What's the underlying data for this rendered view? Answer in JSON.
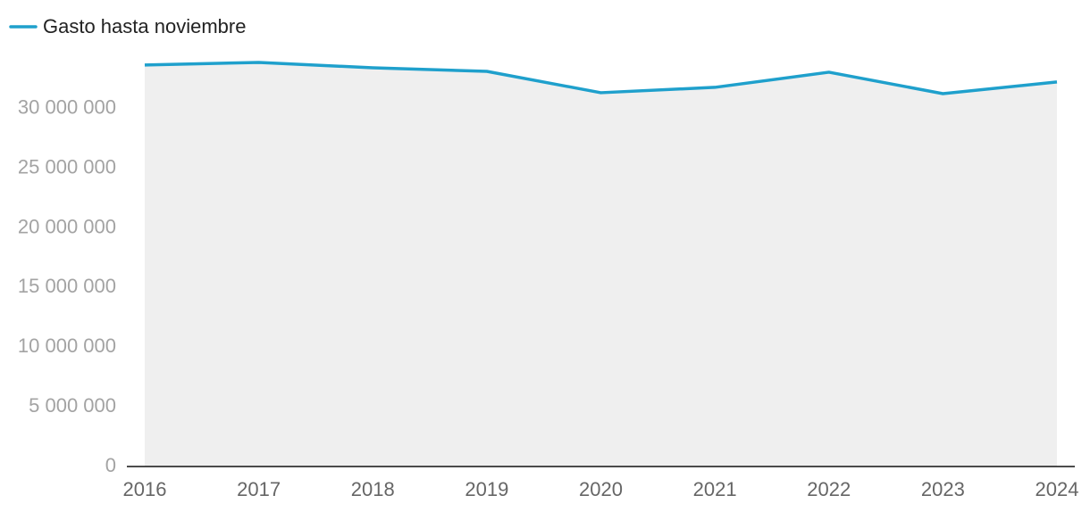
{
  "chart_data": {
    "type": "area",
    "categories": [
      "2016",
      "2017",
      "2018",
      "2019",
      "2020",
      "2021",
      "2022",
      "2023",
      "2024"
    ],
    "series": [
      {
        "name": "Gasto hasta noviembre",
        "color": "#1fa0cc",
        "fill": "#efefef",
        "values": [
          33660000,
          33880000,
          33430000,
          33130000,
          31340000,
          31790000,
          33060000,
          31260000,
          32240000
        ]
      }
    ],
    "ylim": [
      0,
      35000000
    ],
    "yticks": [
      0,
      {
        "value": 5000000,
        "label": "5 000 000"
      },
      {
        "value": 10000000,
        "label": "10 000 000"
      },
      {
        "value": 15000000,
        "label": "15 000 000"
      },
      {
        "value": 20000000,
        "label": "20 000 000"
      },
      {
        "value": 25000000,
        "label": "25 000 000"
      },
      {
        "value": 30000000,
        "label": "30 000 000"
      }
    ],
    "legend": "top-left"
  }
}
